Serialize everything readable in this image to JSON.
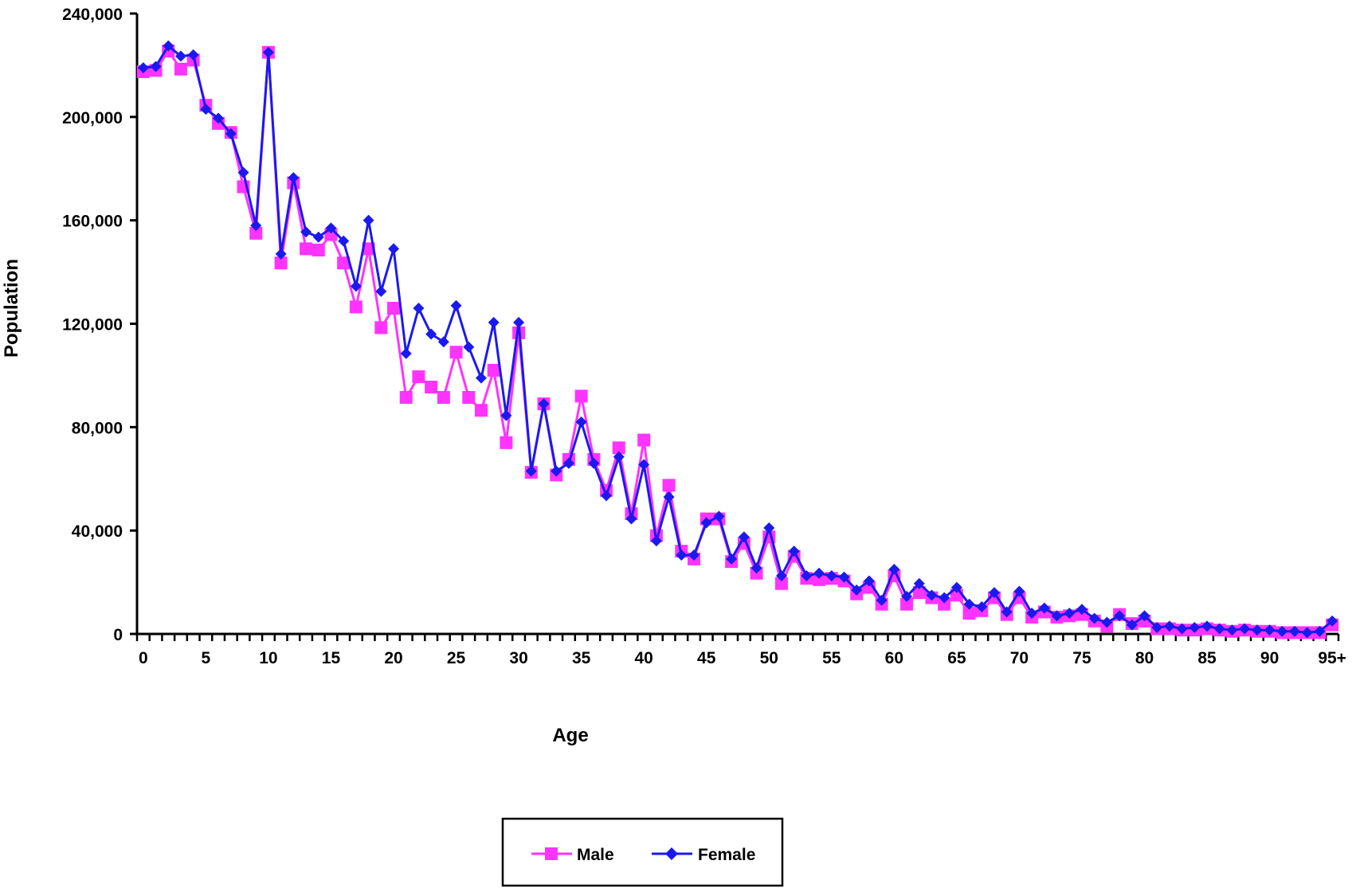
{
  "chart_data": {
    "type": "line",
    "title": "",
    "xlabel": "Age",
    "ylabel": "Population",
    "x_categories": [
      "0",
      "1",
      "2",
      "3",
      "4",
      "5",
      "6",
      "7",
      "8",
      "9",
      "10",
      "11",
      "12",
      "13",
      "14",
      "15",
      "16",
      "17",
      "18",
      "19",
      "20",
      "21",
      "22",
      "23",
      "24",
      "25",
      "26",
      "27",
      "28",
      "29",
      "30",
      "31",
      "32",
      "33",
      "34",
      "35",
      "36",
      "37",
      "38",
      "39",
      "40",
      "41",
      "42",
      "43",
      "44",
      "45",
      "46",
      "47",
      "48",
      "49",
      "50",
      "51",
      "52",
      "53",
      "54",
      "55",
      "56",
      "57",
      "58",
      "59",
      "60",
      "61",
      "62",
      "63",
      "64",
      "65",
      "66",
      "67",
      "68",
      "69",
      "70",
      "71",
      "72",
      "73",
      "74",
      "75",
      "76",
      "77",
      "78",
      "79",
      "80",
      "81",
      "82",
      "83",
      "84",
      "85",
      "86",
      "87",
      "88",
      "89",
      "90",
      "91",
      "92",
      "93",
      "94",
      "95+"
    ],
    "x_tick_labels": [
      "0",
      "5",
      "10",
      "15",
      "20",
      "25",
      "30",
      "35",
      "40",
      "45",
      "50",
      "55",
      "60",
      "65",
      "70",
      "75",
      "80",
      "85",
      "90",
      "95+"
    ],
    "y_tick_labels": [
      "0",
      "40,000",
      "80,000",
      "120,000",
      "160,000",
      "200,000",
      "240,000"
    ],
    "ylim": [
      0,
      240000
    ],
    "grid": false,
    "legend_position": "bottom-center",
    "series": [
      {
        "name": "Male",
        "color": "#ff33ff",
        "marker": "square",
        "values": [
          217500,
          218000,
          225500,
          218500,
          222000,
          204500,
          197500,
          194000,
          173000,
          155000,
          225000,
          143500,
          174500,
          149000,
          148500,
          154500,
          143500,
          126500,
          149000,
          118500,
          126000,
          91500,
          99500,
          95500,
          91500,
          109000,
          91500,
          86500,
          102000,
          74000,
          116500,
          62500,
          89000,
          61500,
          67500,
          92000,
          67500,
          55500,
          72000,
          46500,
          75000,
          38000,
          57500,
          32000,
          29000,
          44500,
          44500,
          28000,
          35000,
          23500,
          37500,
          19500,
          30000,
          21500,
          21000,
          21500,
          20500,
          15500,
          18000,
          11500,
          22500,
          11500,
          16000,
          14000,
          11500,
          15000,
          8000,
          9000,
          14000,
          7500,
          14000,
          6500,
          8500,
          6500,
          7000,
          7500,
          5000,
          3000,
          7500,
          4000,
          5000,
          2000,
          2000,
          1500,
          1500,
          2000,
          1500,
          1000,
          1500,
          1000,
          1000,
          500,
          500,
          500,
          500,
          3500
        ]
      },
      {
        "name": "Female",
        "color": "#1a1aee",
        "marker": "diamond",
        "values": [
          219000,
          219500,
          227500,
          223500,
          224000,
          203000,
          199500,
          193500,
          178500,
          158000,
          225000,
          147000,
          176500,
          155500,
          153500,
          157000,
          152000,
          134500,
          160000,
          132500,
          149000,
          108500,
          126000,
          116000,
          113000,
          127000,
          111000,
          99000,
          120500,
          84500,
          120500,
          63000,
          89000,
          63000,
          66000,
          82000,
          66000,
          53500,
          68500,
          44500,
          65500,
          36000,
          53000,
          30500,
          30500,
          43000,
          45500,
          29000,
          37500,
          25500,
          41000,
          22500,
          32000,
          22500,
          23500,
          22500,
          22000,
          17000,
          20500,
          13000,
          25000,
          14500,
          19500,
          15000,
          14000,
          18000,
          11500,
          10500,
          16000,
          8500,
          16500,
          8000,
          10000,
          7000,
          8000,
          9500,
          6000,
          4500,
          7000,
          3500,
          7000,
          2500,
          3000,
          2000,
          2500,
          3000,
          2000,
          1500,
          2000,
          1500,
          1500,
          1000,
          1000,
          500,
          1000,
          5000
        ]
      }
    ]
  }
}
